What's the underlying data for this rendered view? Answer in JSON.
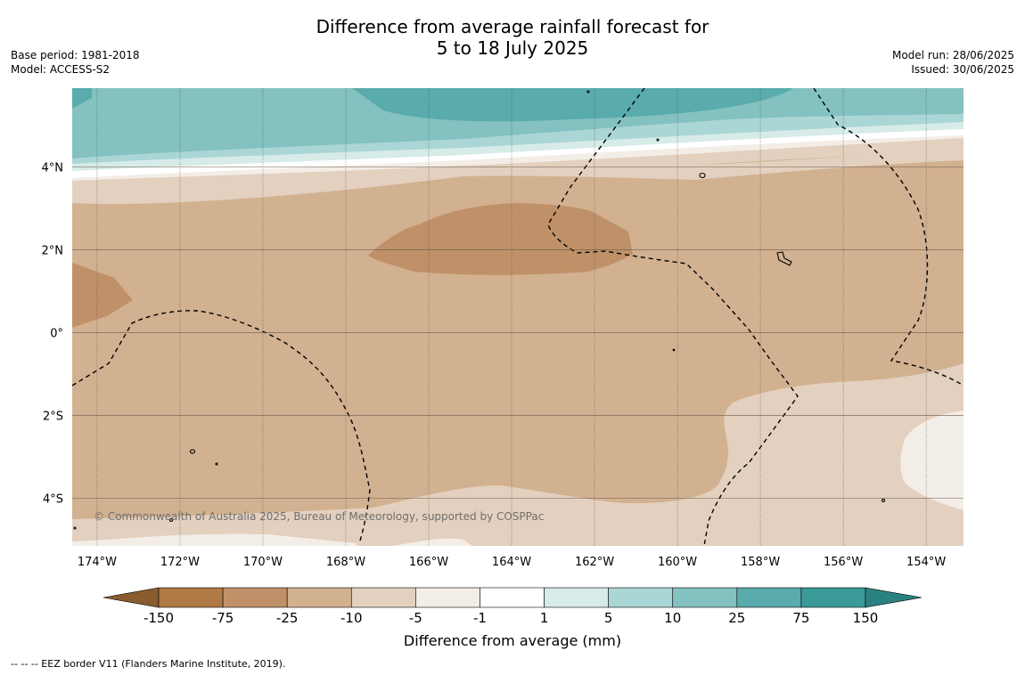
{
  "title": {
    "line1": "Difference from average rainfall forecast for",
    "line2": "5 to 18 July 2025"
  },
  "meta_left": {
    "base_period": "Base period: 1981-2018",
    "model": "Model: ACCESS-S2"
  },
  "meta_right": {
    "model_run": "Model run: 28/06/2025",
    "issued": "Issued: 30/06/2025"
  },
  "map": {
    "lon_range": [
      -174.6,
      -153.1
    ],
    "lat_range": [
      -5.15,
      5.9
    ],
    "lon_ticks": [
      {
        "value": -174,
        "label": "174°W"
      },
      {
        "value": -172,
        "label": "172°W"
      },
      {
        "value": -170,
        "label": "170°W"
      },
      {
        "value": -168,
        "label": "168°W"
      },
      {
        "value": -166,
        "label": "166°W"
      },
      {
        "value": -164,
        "label": "164°W"
      },
      {
        "value": -162,
        "label": "162°W"
      },
      {
        "value": -160,
        "label": "160°W"
      },
      {
        "value": -158,
        "label": "158°W"
      },
      {
        "value": -156,
        "label": "156°W"
      },
      {
        "value": -154,
        "label": "154°W"
      }
    ],
    "lat_ticks": [
      {
        "value": 4,
        "label": "4°N"
      },
      {
        "value": 2,
        "label": "2°N"
      },
      {
        "value": 0,
        "label": "0°"
      },
      {
        "value": -2,
        "label": "2°S"
      },
      {
        "value": -4,
        "label": "4°S"
      }
    ],
    "copyright": "© Commonwealth of Australia 2025, Bureau of Meteorology, supported by COSPPac"
  },
  "colorbar": {
    "boundaries": [
      "-150",
      "-75",
      "-25",
      "-10",
      "-5",
      "-1",
      "1",
      "5",
      "10",
      "25",
      "75",
      "150"
    ],
    "colors": {
      "below_min": "#8a5c2e",
      "bins": [
        "#b07a45",
        "#c09168",
        "#d2b191",
        "#e3d0be",
        "#f3ede7",
        "#ffffff",
        "#d7ebe9",
        "#aad6d5",
        "#84c1c1",
        "#5aabab",
        "#3a9a98"
      ],
      "above_max": "#2a8280"
    },
    "label": "Difference from average (mm)"
  },
  "footer": "--  --  -- EEZ border V11 (Flanders Marine Institute, 2019)."
}
